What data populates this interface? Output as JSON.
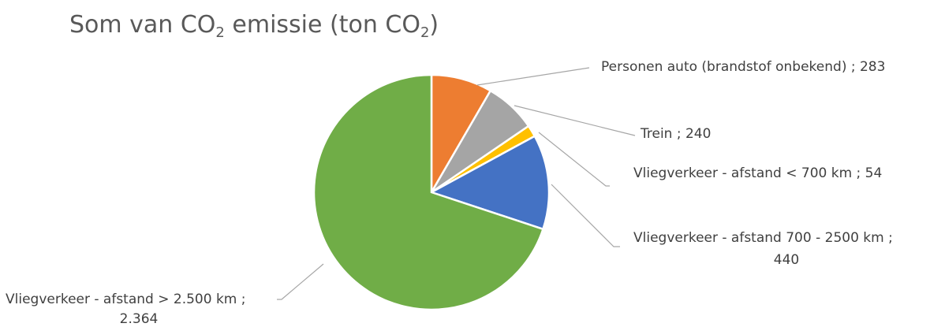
{
  "chart_data": {
    "type": "pie",
    "title": {
      "prefix": "Som van CO",
      "sub1": "2",
      "middle": " emissie (ton CO",
      "sub2": "2",
      "suffix": ")"
    },
    "slices": [
      {
        "label": "Personen auto (brandstof onbekend)",
        "value": 283,
        "display": "283",
        "color": "#ED7D31"
      },
      {
        "label": "Trein",
        "value": 240,
        "display": "240",
        "color": "#A5A5A5"
      },
      {
        "label": "Vliegverkeer - afstand < 700 km",
        "value": 54,
        "display": "54",
        "color": "#FFC000"
      },
      {
        "label": "Vliegverkeer - afstand 700 - 2500 km",
        "value": 440,
        "display": "440",
        "color": "#4472C4"
      },
      {
        "label": "Vliegverkeer - afstand > 2.500 km",
        "value": 2364,
        "display": "2.364",
        "color": "#70AD47"
      }
    ],
    "legend": "none",
    "data_labels": "outside-with-leader-lines"
  }
}
